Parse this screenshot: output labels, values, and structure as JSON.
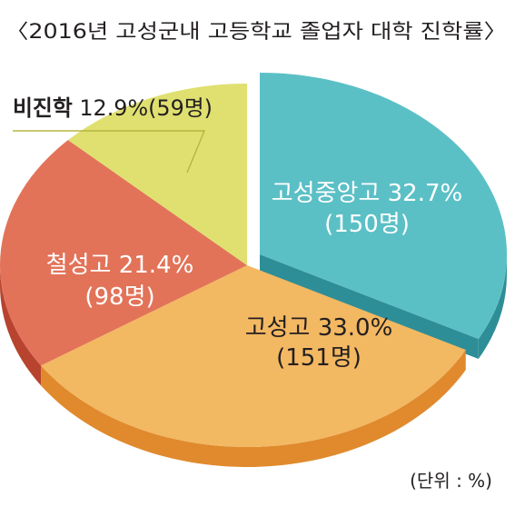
{
  "chart_data": {
    "type": "pie",
    "title": "〈2016년 고성군내 고등학교 졸업자 대학 진학률〉",
    "unit_note": "(단위 : %)",
    "slices": [
      {
        "name": "고성중앙고",
        "percent": 32.7,
        "count": 150,
        "percent_label": "고성중앙고 32.7%",
        "count_label": "(150명)",
        "color": "#5bc0c6",
        "side_color": "#2e8e97",
        "text_color": "#ffffff"
      },
      {
        "name": "고성고",
        "percent": 33.0,
        "count": 151,
        "percent_label": "고성고 33.0%",
        "count_label": "(151명)",
        "color": "#f3b862",
        "side_color": "#e08a2d",
        "text_color": "#231f20"
      },
      {
        "name": "철성고",
        "percent": 21.4,
        "count": 98,
        "percent_label": "철성고 21.4%",
        "count_label": "(98명)",
        "color": "#e27359",
        "side_color": "#b8432e",
        "text_color": "#ffffff"
      },
      {
        "name": "비진학",
        "percent": 12.9,
        "count": 59,
        "label_bold": "비진학",
        "label_rest": " 12.9%(59명)",
        "color": "#dfe070",
        "side_color": "#b5b640",
        "text_color": "#231f20"
      }
    ]
  }
}
